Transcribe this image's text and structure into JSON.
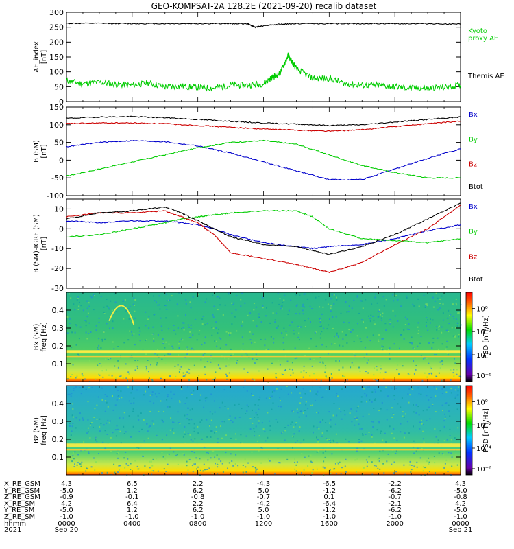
{
  "figure": {
    "title": "GEO-KOMPSAT-2A 128.2E (2021-09-20) recalib dataset"
  },
  "chart_data": [
    {
      "type": "line",
      "ylabel": "AE_index\n[nT]",
      "ylim": [
        0,
        300
      ],
      "yticks": [
        0,
        50,
        100,
        150,
        200,
        250,
        300
      ],
      "series": [
        {
          "name": "Kyoto\nproxy AE",
          "color": "#00cc00",
          "x": [
            0,
            1,
            2,
            3,
            4,
            5,
            6,
            7,
            8,
            9,
            10,
            11,
            12,
            12.5,
            13,
            13.5,
            14,
            15,
            16,
            17,
            18,
            19,
            20,
            21,
            22,
            23,
            24
          ],
          "y": [
            70,
            60,
            65,
            58,
            55,
            62,
            50,
            52,
            48,
            45,
            55,
            55,
            60,
            80,
            95,
            155,
            110,
            78,
            78,
            60,
            55,
            55,
            50,
            45,
            45,
            48,
            55
          ]
        },
        {
          "name": "Themis AE",
          "color": "#000000",
          "x": [
            0,
            2,
            4,
            6,
            8,
            10,
            11,
            11.5,
            12,
            13,
            14,
            16,
            18,
            20,
            22,
            24
          ],
          "y": [
            263,
            263,
            262,
            262,
            262,
            262,
            262,
            250,
            255,
            260,
            262,
            262,
            262,
            262,
            262,
            260
          ]
        }
      ]
    },
    {
      "type": "line",
      "ylabel": "B (SM)\n[nT]",
      "ylim": [
        -100,
        150
      ],
      "yticks": [
        -100,
        -50,
        0,
        50,
        100,
        150
      ],
      "series": [
        {
          "name": "Bx",
          "color": "#0000cc",
          "x": [
            0,
            2,
            4,
            6,
            8,
            10,
            12,
            14,
            16,
            18,
            20,
            22,
            24
          ],
          "y": [
            38,
            50,
            55,
            52,
            40,
            20,
            -5,
            -30,
            -55,
            -55,
            -25,
            5,
            32
          ]
        },
        {
          "name": "By",
          "color": "#00cc00",
          "x": [
            0,
            2,
            4,
            6,
            8,
            10,
            12,
            14,
            16,
            18,
            20,
            22,
            24
          ],
          "y": [
            -45,
            -25,
            -5,
            15,
            35,
            50,
            55,
            45,
            15,
            -15,
            -35,
            -50,
            -50
          ]
        },
        {
          "name": "Bz",
          "color": "#cc0000",
          "x": [
            0,
            2,
            4,
            6,
            8,
            10,
            12,
            14,
            16,
            18,
            20,
            22,
            24
          ],
          "y": [
            103,
            105,
            105,
            103,
            98,
            93,
            88,
            85,
            82,
            86,
            95,
            103,
            110
          ]
        },
        {
          "name": "Btot",
          "color": "#000000",
          "x": [
            0,
            2,
            4,
            6,
            8,
            10,
            12,
            14,
            16,
            18,
            20,
            22,
            24
          ],
          "y": [
            118,
            122,
            123,
            120,
            115,
            110,
            105,
            102,
            98,
            100,
            108,
            115,
            122
          ]
        }
      ]
    },
    {
      "type": "line",
      "ylabel": "B (SM)-IGRF (SM)\n[nT]",
      "ylim": [
        -30,
        15
      ],
      "yticks": [
        -30,
        -20,
        -10,
        0,
        10
      ],
      "series": [
        {
          "name": "Bx",
          "color": "#0000cc",
          "x": [
            0,
            2,
            4,
            6,
            7,
            8,
            9,
            10,
            12,
            14,
            15,
            16,
            18,
            20,
            22,
            24
          ],
          "y": [
            4,
            3,
            4,
            4,
            3,
            2,
            0,
            -3,
            -7,
            -9,
            -10,
            -9,
            -8,
            -5,
            -1,
            2
          ]
        },
        {
          "name": "By",
          "color": "#00cc00",
          "x": [
            0,
            2,
            4,
            6,
            7,
            8,
            9,
            10,
            12,
            14,
            15,
            16,
            18,
            20,
            22,
            24
          ],
          "y": [
            -4,
            -3,
            0,
            3,
            5,
            6,
            7,
            8,
            9,
            9,
            6,
            0,
            -5,
            -6,
            -7,
            -5
          ]
        },
        {
          "name": "Bz",
          "color": "#cc0000",
          "x": [
            0,
            2,
            4,
            6,
            7,
            8,
            9,
            10,
            12,
            14,
            15,
            16,
            18,
            20,
            22,
            24
          ],
          "y": [
            6,
            8,
            8,
            9,
            6,
            3,
            -3,
            -12,
            -15,
            -18,
            -20,
            -22,
            -17,
            -8,
            0,
            12
          ]
        },
        {
          "name": "Btot",
          "color": "#000000",
          "x": [
            0,
            2,
            4,
            6,
            7,
            8,
            9,
            10,
            12,
            14,
            15,
            16,
            18,
            20,
            22,
            24
          ],
          "y": [
            5,
            8,
            9,
            11,
            8,
            4,
            0,
            -4,
            -8,
            -9,
            -11,
            -13,
            -9,
            -3,
            5,
            13
          ]
        }
      ]
    },
    {
      "type": "heatmap",
      "ylabel": "Bx (SM)\nfreq [Hz]",
      "ylim": [
        0,
        0.5
      ],
      "yticks": [
        0.1,
        0.2,
        0.3,
        0.4
      ],
      "colorbar_label": "PSD [nT²/Hz]",
      "colorbar_ticks": [
        "10⁰",
        "10⁻²",
        "10⁻⁴",
        "10⁻⁶"
      ]
    },
    {
      "type": "heatmap",
      "ylabel": "Bz (SM)\nfreq [Hz]",
      "ylim": [
        0,
        0.5
      ],
      "yticks": [
        0.1,
        0.2,
        0.3,
        0.4
      ],
      "colorbar_label": "PSD [nT²/Hz]",
      "colorbar_ticks": [
        "10⁰",
        "10⁻²",
        "10⁻⁴",
        "10⁻⁶"
      ]
    }
  ],
  "ephemeris": {
    "rows": [
      {
        "label": "X_RE_GSM",
        "values": [
          "4.3",
          "6.5",
          "2.2",
          "-4.3",
          "-6.5",
          "-2.2",
          "4.3"
        ]
      },
      {
        "label": "Y_RE_GSM",
        "values": [
          "-5.0",
          "1.2",
          "6.2",
          "5.0",
          "-1.2",
          "-6.2",
          "-5.0"
        ]
      },
      {
        "label": "Z_RE_GSM",
        "values": [
          "-0.9",
          "-0.1",
          "-0.8",
          "-0.7",
          "0.1",
          "-0.7",
          "-0.8"
        ]
      },
      {
        "label": "X_RE_SM",
        "values": [
          "4.2",
          "6.4",
          "2.2",
          "-4.2",
          "-6.4",
          "-2.1",
          "4.2"
        ]
      },
      {
        "label": "Y_RE_SM",
        "values": [
          "-5.0",
          "1.2",
          "6.2",
          "5.0",
          "-1.2",
          "-6.2",
          "-5.0"
        ]
      },
      {
        "label": "Z_RE_SM",
        "values": [
          "-1.0",
          "-1.0",
          "-1.0",
          "-1.0",
          "-1.0",
          "-1.0",
          "-1.0"
        ]
      },
      {
        "label": "hhmm",
        "values": [
          "0000",
          "0400",
          "0800",
          "1200",
          "1600",
          "2000",
          "0000"
        ]
      },
      {
        "label": "2021",
        "values": [
          "Sep 20",
          "",
          "",
          "",
          "",
          "",
          "Sep 21"
        ]
      }
    ]
  }
}
